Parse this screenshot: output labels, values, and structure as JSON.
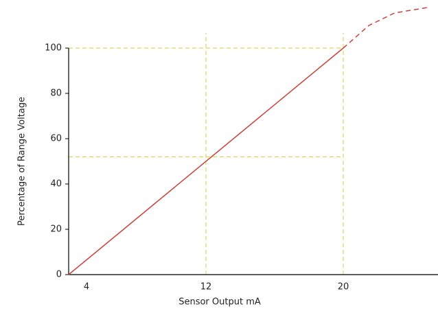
{
  "chart_data": {
    "type": "line",
    "xlabel": "Sensor Output mA",
    "ylabel": "Percentage of Range Voltage",
    "series": [
      {
        "color": "#c8423a",
        "style": "solid",
        "x": [
          4,
          20
        ],
        "values": [
          0,
          100
        ]
      },
      {
        "color": "#c8423a",
        "style": "dashed",
        "x": [
          20,
          21.5,
          23,
          25
        ],
        "values": [
          100,
          110,
          115.5,
          118
        ]
      }
    ],
    "xlim": [
      4,
      25
    ],
    "xticks": [
      4,
      12,
      20
    ],
    "ylim": [
      0,
      120
    ],
    "yticks": [
      0,
      20,
      40,
      60,
      80,
      100
    ],
    "reference_lines": {
      "color": "#d8d860",
      "x": [
        12,
        20
      ],
      "y": [
        100,
        52
      ]
    }
  }
}
